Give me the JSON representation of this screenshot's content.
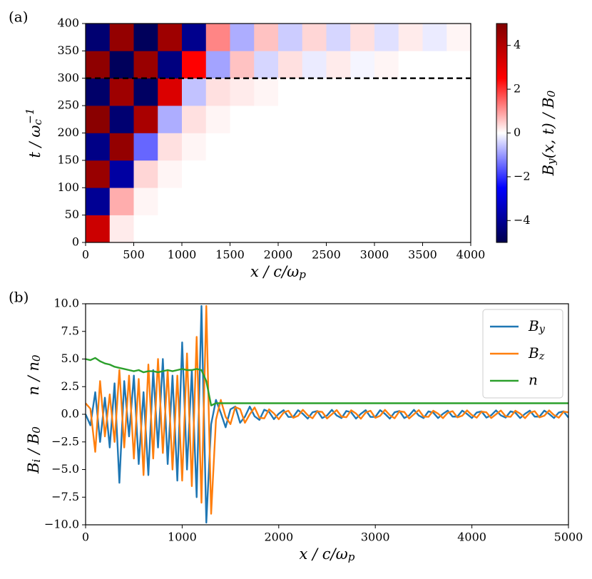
{
  "chart_data": [
    {
      "type": "heatmap",
      "panel_label": "(a)",
      "xlabel": [
        {
          "text": "x / c/ω"
        },
        {
          "sub": "p"
        }
      ],
      "ylabel": [
        {
          "text": "t / ω"
        },
        {
          "sub": "c"
        },
        {
          "sup": "−1"
        }
      ],
      "colorbar_label": [
        {
          "text": "B"
        },
        {
          "sub": "y"
        },
        {
          "text": "(x, t) / B"
        },
        {
          "sub": "0"
        }
      ],
      "xlim": [
        0,
        4000
      ],
      "ylim": [
        0,
        400
      ],
      "xticks": [
        0,
        500,
        1000,
        1500,
        2000,
        2500,
        3000,
        3500,
        4000
      ],
      "yticks": [
        0,
        50,
        100,
        150,
        200,
        250,
        300,
        350,
        400
      ],
      "xbins": [
        0,
        250,
        500,
        750,
        1000,
        1250,
        1500,
        1750,
        2000,
        2250,
        2500,
        2750,
        3000,
        3250,
        3500,
        3750,
        4000
      ],
      "ybins": [
        0,
        50,
        100,
        150,
        200,
        250,
        300,
        350,
        400
      ],
      "z": [
        [
          3.5,
          0.2,
          0,
          0,
          0,
          0,
          0,
          0,
          0,
          0,
          0,
          0,
          0,
          0,
          0,
          0
        ],
        [
          -4,
          0.8,
          0.1,
          0,
          0,
          0,
          0,
          0,
          0,
          0,
          0,
          0,
          0,
          0,
          0,
          0
        ],
        [
          4.5,
          -3.8,
          0.4,
          0.1,
          0,
          0,
          0,
          0,
          0,
          0,
          0,
          0,
          0,
          0,
          0,
          0
        ],
        [
          -4.2,
          4.6,
          -1.5,
          0.3,
          0.1,
          0,
          0,
          0,
          0,
          0,
          0,
          0,
          0,
          0,
          0,
          0
        ],
        [
          4.8,
          -4.5,
          4.2,
          -0.8,
          0.3,
          0.1,
          0,
          0,
          0,
          0,
          0,
          0,
          0,
          0,
          0,
          0
        ],
        [
          -4.6,
          4.4,
          -4.7,
          3.2,
          -0.6,
          0.3,
          0.2,
          0.1,
          0,
          0,
          0,
          0,
          0,
          0,
          0,
          0
        ],
        [
          4.7,
          -4.8,
          4.5,
          -4.3,
          2.5,
          -0.9,
          0.6,
          -0.4,
          0.3,
          -0.2,
          0.2,
          -0.1,
          0.1,
          0,
          0,
          0
        ],
        [
          -4.5,
          4.6,
          -4.8,
          4.4,
          -4.1,
          1.2,
          -0.8,
          0.6,
          -0.5,
          0.4,
          -0.4,
          0.3,
          -0.3,
          0.2,
          -0.2,
          0.1
        ]
      ],
      "clim": [
        -5,
        5
      ],
      "cticks": [
        {
          "value": -4,
          "label": "−4"
        },
        {
          "value": -2,
          "label": "−2"
        },
        0,
        2,
        4
      ],
      "colormap": [
        "#00004d",
        "#0000ff",
        "#ffffff",
        "#ff0000",
        "#800000"
      ],
      "hline": 300,
      "hline_color": "#000000"
    },
    {
      "type": "line",
      "panel_label": "(b)",
      "xlabel": [
        {
          "text": "x / c/ω"
        },
        {
          "sub": "p"
        }
      ],
      "ylabels": [
        [
          {
            "text": "B"
          },
          {
            "sub": "i"
          },
          {
            "text": " / B"
          },
          {
            "sub": "0"
          }
        ],
        [
          {
            "text": "n / n"
          },
          {
            "sub": "0"
          }
        ]
      ],
      "xlim": [
        0,
        5000
      ],
      "ylim": [
        -10,
        10
      ],
      "xticks": [
        0,
        1000,
        2000,
        3000,
        4000,
        5000
      ],
      "yticks": [
        {
          "value": -10,
          "label": "−10.0"
        },
        {
          "value": -7.5,
          "label": "−7.5"
        },
        {
          "value": -5,
          "label": "−5.0"
        },
        {
          "value": -2.5,
          "label": "−2.5"
        },
        {
          "value": 0,
          "label": "0.0"
        },
        2.5,
        {
          "value": 5,
          "label": "5.0"
        },
        7.5,
        {
          "value": 10,
          "label": "10.0"
        }
      ],
      "legend": "upper right",
      "x": [
        0,
        50,
        100,
        150,
        200,
        250,
        300,
        350,
        400,
        450,
        500,
        550,
        600,
        650,
        700,
        750,
        800,
        850,
        900,
        950,
        1000,
        1050,
        1100,
        1150,
        1200,
        1250,
        1300,
        1350,
        1400,
        1450,
        1500,
        1550,
        1600,
        1650,
        1700,
        1750,
        1800,
        1850,
        1900,
        1950,
        2000,
        2050,
        2100,
        2150,
        2200,
        2250,
        2300,
        2350,
        2400,
        2450,
        2500,
        2550,
        2600,
        2650,
        2700,
        2750,
        2800,
        2850,
        2900,
        2950,
        3000,
        3050,
        3100,
        3150,
        3200,
        3250,
        3300,
        3350,
        3400,
        3450,
        3500,
        3550,
        3600,
        3650,
        3700,
        3750,
        3800,
        3850,
        3900,
        3950,
        4000,
        4050,
        4100,
        4150,
        4200,
        4250,
        4300,
        4350,
        4400,
        4450,
        4500,
        4550,
        4600,
        4650,
        4700,
        4750,
        4800,
        4850,
        4900,
        4950,
        5000
      ],
      "series": [
        {
          "name": [
            {
              "text": "B"
            },
            {
              "sub": "y"
            }
          ],
          "color": "#1f77b4",
          "values": [
            0,
            -1,
            2,
            -2.5,
            1.5,
            -3,
            2.8,
            -6.2,
            3,
            -2,
            3.5,
            -4.5,
            2,
            -5.5,
            4,
            -3,
            5,
            -4.5,
            3.5,
            -6,
            6.5,
            -5,
            4,
            -7.5,
            9.8,
            -9.8,
            -0.9,
            1.3,
            0.12,
            -1.18,
            0.45,
            0.7,
            -0.77,
            -0.22,
            0.7,
            -0.18,
            -0.51,
            0.41,
            0.22,
            -0.44,
            0.05,
            0.37,
            -0.24,
            -0.24,
            0.37,
            0.04,
            -0.39,
            0.18,
            0.3,
            -0.34,
            -0.11,
            0.4,
            -0.11,
            -0.34,
            0.3,
            0.18,
            -0.39,
            0.04,
            0.37,
            -0.24,
            -0.24,
            0.37,
            0.04,
            -0.39,
            0.18,
            0.3,
            -0.34,
            -0.11,
            0.4,
            -0.11,
            -0.34,
            0.26,
            0.15,
            -0.34,
            0.04,
            0.33,
            -0.21,
            -0.21,
            0.33,
            0.03,
            -0.34,
            0.16,
            0.26,
            -0.3,
            -0.09,
            0.35,
            -0.1,
            -0.3,
            0.26,
            0.15,
            -0.34,
            0.04,
            0.33,
            -0.21,
            -0.21,
            0.33,
            0.03,
            -0.34,
            0.16,
            0.26,
            -0.3
          ]
        },
        {
          "name": [
            {
              "text": "B"
            },
            {
              "sub": "z"
            }
          ],
          "color": "#ff7f0e",
          "values": [
            1,
            0.5,
            -3.4,
            3,
            -2,
            1.8,
            -2.5,
            4,
            -3,
            3.5,
            -4,
            3.2,
            -5.5,
            4.5,
            -4,
            5,
            -3.5,
            4,
            -5,
            3.5,
            -6,
            5.5,
            -6.5,
            7,
            -8,
            9.8,
            -9,
            -0.5,
            1.3,
            -0.23,
            -0.89,
            0.65,
            0.47,
            -0.77,
            0,
            0.62,
            -0.32,
            -0.37,
            0.45,
            0.08,
            -0.45,
            0.15,
            0.32,
            -0.32,
            -0.14,
            0.4,
            -0.08,
            -0.36,
            0.27,
            0.21,
            -0.38,
            0,
            0.38,
            -0.21,
            -0.27,
            0.36,
            0.07,
            -0.4,
            0.15,
            0.32,
            -0.32,
            -0.14,
            0.4,
            -0.08,
            -0.36,
            0.27,
            0.21,
            -0.38,
            0,
            0.38,
            -0.21,
            -0.23,
            0.32,
            0.06,
            -0.35,
            0.13,
            0.28,
            -0.28,
            -0.13,
            0.35,
            -0.07,
            -0.31,
            0.24,
            0.18,
            -0.34,
            0,
            0.34,
            -0.19,
            -0.23,
            0.32,
            0.06,
            -0.35,
            0.13,
            0.28,
            -0.28,
            -0.13,
            0.35,
            -0.07,
            -0.31,
            0.24,
            0.18
          ]
        },
        {
          "name": "n",
          "color": "#2ca02c",
          "values": [
            5.0,
            4.9,
            5.1,
            4.8,
            4.6,
            4.5,
            4.3,
            4.2,
            4.1,
            4.0,
            3.9,
            4.0,
            3.8,
            3.9,
            3.9,
            3.8,
            3.9,
            4.0,
            3.9,
            4.0,
            4.1,
            4.0,
            4.0,
            4.1,
            4.0,
            3.0,
            0.8,
            1,
            1,
            1,
            1,
            1,
            1,
            1,
            1,
            1,
            1,
            1,
            1,
            1,
            1,
            1,
            1,
            1,
            1,
            1,
            1,
            1,
            1,
            1,
            1,
            1,
            1,
            1,
            1,
            1,
            1,
            1,
            1,
            1,
            1,
            1,
            1,
            1,
            1,
            1,
            1,
            1,
            1,
            1,
            1,
            1,
            1,
            1,
            1,
            1,
            1,
            1,
            1,
            1,
            1,
            1,
            1,
            1,
            1,
            1,
            1,
            1,
            1,
            1,
            1,
            1,
            1,
            1,
            1,
            1,
            1,
            1,
            1,
            1,
            1
          ]
        }
      ]
    }
  ]
}
